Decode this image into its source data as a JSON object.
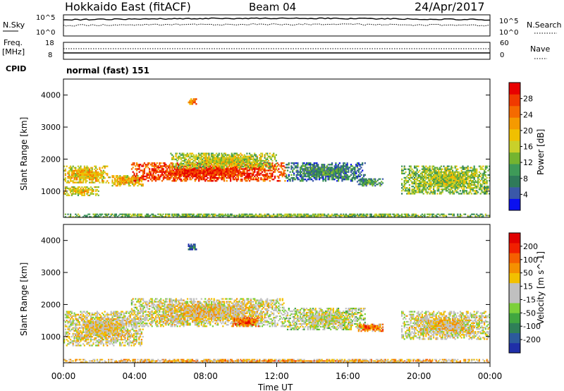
{
  "header": {
    "radar": "Hokkaido East (fitACF)",
    "beam": "Beam 04",
    "date": "24/Apr/2017"
  },
  "noise_panel": {
    "left_label": "N.Sky",
    "right_label": "N.Search",
    "left_ticks": [
      "10^5",
      "10^0"
    ],
    "right_ticks": [
      "10^5",
      "10^0"
    ]
  },
  "freq_panel": {
    "left_label_top": "Freq.",
    "left_label_bottom": "[MHz]",
    "right_label": "Nave",
    "left_ticks": [
      "18",
      "8"
    ],
    "right_ticks": [
      "60",
      "0"
    ],
    "cpid_label": "CPID",
    "cpid_text": "normal (fast) 151"
  },
  "time_axis": {
    "label": "Time UT",
    "ticks": [
      "00:00",
      "04:00",
      "08:00",
      "12:00",
      "16:00",
      "20:00",
      "00:00"
    ]
  },
  "chart_data": [
    {
      "type": "heatmap",
      "name": "power",
      "ylabel": "Slant Range [km]",
      "yticks": [
        "1000",
        "2000",
        "3000",
        "4000"
      ],
      "ylim": [
        180,
        4500
      ],
      "xlim_hours": [
        0,
        24
      ],
      "colorbar": {
        "label": "Power [dB]",
        "ticks": [
          "4",
          "8",
          "12",
          "16",
          "20",
          "24",
          "28"
        ],
        "colors": [
          "#0a10f0",
          "#3a58a8",
          "#2f7a5a",
          "#3e9a58",
          "#74b430",
          "#c9d02a",
          "#f0c000",
          "#f59a00",
          "#f56a00",
          "#f03a00",
          "#e80000"
        ]
      },
      "regions": [
        {
          "t": [
            0.0,
            2.5
          ],
          "r": [
            1250,
            1800
          ],
          "level": 0.55
        },
        {
          "t": [
            0.0,
            2.0
          ],
          "r": [
            850,
            1150
          ],
          "level": 0.5
        },
        {
          "t": [
            2.5,
            4.5
          ],
          "r": [
            1150,
            1500
          ],
          "level": 0.55
        },
        {
          "t": [
            3.8,
            12.5
          ],
          "r": [
            1300,
            1900
          ],
          "level": 0.82
        },
        {
          "t": [
            6.0,
            12.0
          ],
          "r": [
            1700,
            2200
          ],
          "level": 0.45
        },
        {
          "t": [
            7.0,
            7.5
          ],
          "r": [
            3700,
            3900
          ],
          "level": 0.7
        },
        {
          "t": [
            12.5,
            17.0
          ],
          "r": [
            1300,
            1900
          ],
          "level": 0.2
        },
        {
          "t": [
            16.5,
            18.0
          ],
          "r": [
            1150,
            1400
          ],
          "level": 0.25
        },
        {
          "t": [
            19.0,
            24.0
          ],
          "r": [
            900,
            1800
          ],
          "level": 0.4
        },
        {
          "t": [
            0.0,
            24.0
          ],
          "r": [
            180,
            300
          ],
          "level": 0.35
        }
      ]
    },
    {
      "type": "heatmap",
      "name": "velocity",
      "ylabel": "Slant Range [km]",
      "yticks": [
        "1000",
        "2000",
        "3000",
        "4000"
      ],
      "ylim": [
        180,
        4500
      ],
      "xlim_hours": [
        0,
        24
      ],
      "colorbar": {
        "label": "Velocity [m s^-1]",
        "ticks": [
          "200",
          "100",
          "50",
          "15",
          "-15",
          "-50",
          "-100",
          "-200"
        ],
        "colors": [
          "#1f2fa8",
          "#2c5a9c",
          "#2f7f58",
          "#41a640",
          "#7cd03a",
          "#c0c0c0",
          "#c0c0c0",
          "#f2c000",
          "#f59000",
          "#f56000",
          "#f02000",
          "#e00000"
        ]
      },
      "regions": [
        {
          "t": [
            0.0,
            4.5
          ],
          "r": [
            700,
            1800
          ],
          "level": 0.5
        },
        {
          "t": [
            3.8,
            12.5
          ],
          "r": [
            1300,
            2200
          ],
          "level": 0.5
        },
        {
          "t": [
            9.5,
            11.0
          ],
          "r": [
            1300,
            1600
          ],
          "level": 0.72
        },
        {
          "t": [
            7.0,
            7.5
          ],
          "r": [
            3700,
            3900
          ],
          "level": 0.05
        },
        {
          "t": [
            12.5,
            17.0
          ],
          "r": [
            1200,
            1900
          ],
          "level": 0.45
        },
        {
          "t": [
            16.5,
            18.0
          ],
          "r": [
            1150,
            1400
          ],
          "level": 0.7
        },
        {
          "t": [
            19.0,
            24.0
          ],
          "r": [
            900,
            1800
          ],
          "level": 0.5
        },
        {
          "t": [
            0.0,
            24.0
          ],
          "r": [
            180,
            300
          ],
          "level": 0.6
        }
      ]
    }
  ]
}
